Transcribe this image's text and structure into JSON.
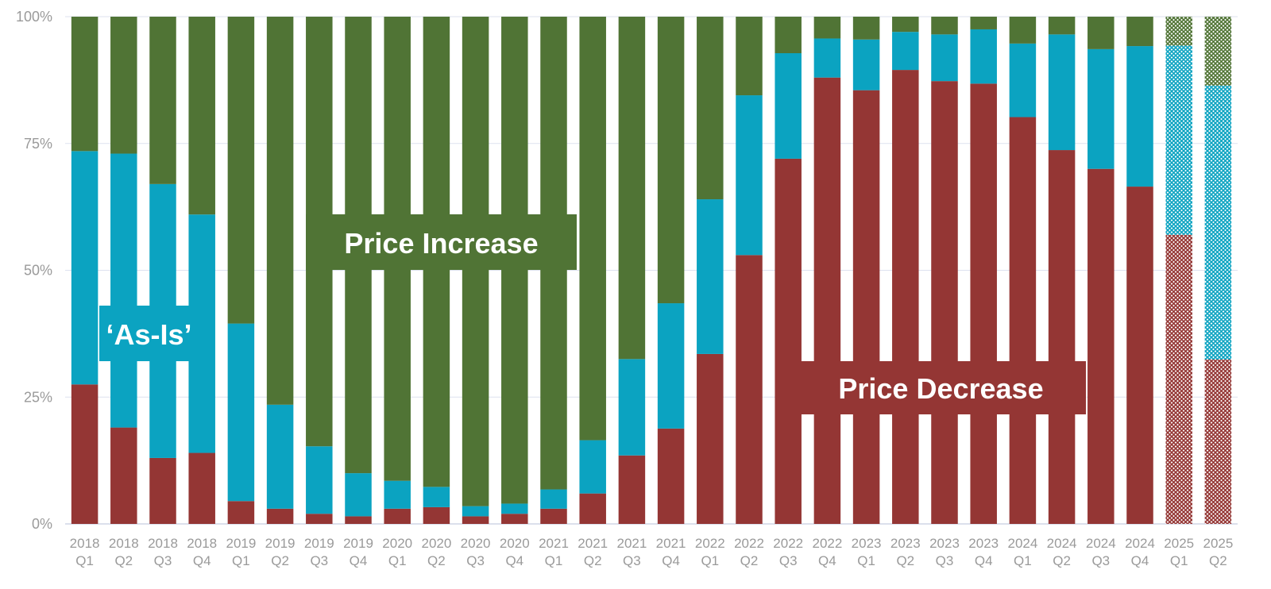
{
  "chart_data": {
    "type": "bar",
    "stacked": true,
    "normalized": true,
    "ylim": [
      0,
      100
    ],
    "y_ticks": [
      "0%",
      "25%",
      "50%",
      "75%",
      "100%"
    ],
    "grid": true,
    "legend": "none",
    "categories": [
      [
        "2018",
        "Q1"
      ],
      [
        "2018",
        "Q2"
      ],
      [
        "2018",
        "Q3"
      ],
      [
        "2018",
        "Q4"
      ],
      [
        "2019",
        "Q1"
      ],
      [
        "2019",
        "Q2"
      ],
      [
        "2019",
        "Q3"
      ],
      [
        "2019",
        "Q4"
      ],
      [
        "2020",
        "Q1"
      ],
      [
        "2020",
        "Q2"
      ],
      [
        "2020",
        "Q3"
      ],
      [
        "2020",
        "Q4"
      ],
      [
        "2021",
        "Q1"
      ],
      [
        "2021",
        "Q2"
      ],
      [
        "2021",
        "Q3"
      ],
      [
        "2021",
        "Q4"
      ],
      [
        "2022",
        "Q1"
      ],
      [
        "2022",
        "Q2"
      ],
      [
        "2022",
        "Q3"
      ],
      [
        "2022",
        "Q4"
      ],
      [
        "2023",
        "Q1"
      ],
      [
        "2023",
        "Q2"
      ],
      [
        "2023",
        "Q3"
      ],
      [
        "2023",
        "Q4"
      ],
      [
        "2024",
        "Q1"
      ],
      [
        "2024",
        "Q2"
      ],
      [
        "2024",
        "Q3"
      ],
      [
        "2024",
        "Q4"
      ],
      [
        "2025",
        "Q1"
      ],
      [
        "2025",
        "Q2"
      ]
    ],
    "forecast_categories": [
      "2025 Q1",
      "2025 Q2"
    ],
    "series": [
      {
        "color": "#943634",
        "values": [
          27.5,
          19,
          13,
          14,
          4.5,
          3,
          2,
          1.5,
          3,
          3.3,
          1.5,
          2,
          3,
          6,
          13.5,
          18.8,
          33.5,
          53,
          72,
          88,
          85.5,
          89.5,
          87.3,
          86.8,
          80.2,
          73.7,
          70,
          66.5,
          57,
          32.4
        ]
      },
      {
        "color": "#0ba3c1",
        "values": [
          46,
          54,
          54,
          47,
          35,
          20.5,
          13.3,
          8.5,
          5.5,
          4,
          2,
          2,
          3.8,
          10.5,
          19,
          24.7,
          30.5,
          31.5,
          20.8,
          7.7,
          10,
          7.5,
          9.2,
          10.7,
          14.5,
          22.8,
          23.6,
          27.7,
          37.3,
          54
        ]
      },
      {
        "color": "#507435",
        "values": [
          26.5,
          27,
          33,
          39,
          60.5,
          76.5,
          84.7,
          90,
          91.5,
          92.7,
          96.5,
          96,
          93.2,
          83.5,
          67.5,
          56.5,
          36,
          15.5,
          7.2,
          4.3,
          4.5,
          3,
          3.5,
          2.5,
          5.3,
          3.5,
          6.4,
          5.8,
          5.7,
          13.6
        ]
      }
    ],
    "annotations": [
      {
        "text": "Price Increase",
        "color": "#507435"
      },
      {
        "text": "‘As-Is’",
        "color": "#0ba3c1"
      },
      {
        "text": "Price Decrease",
        "color": "#943634"
      }
    ]
  }
}
